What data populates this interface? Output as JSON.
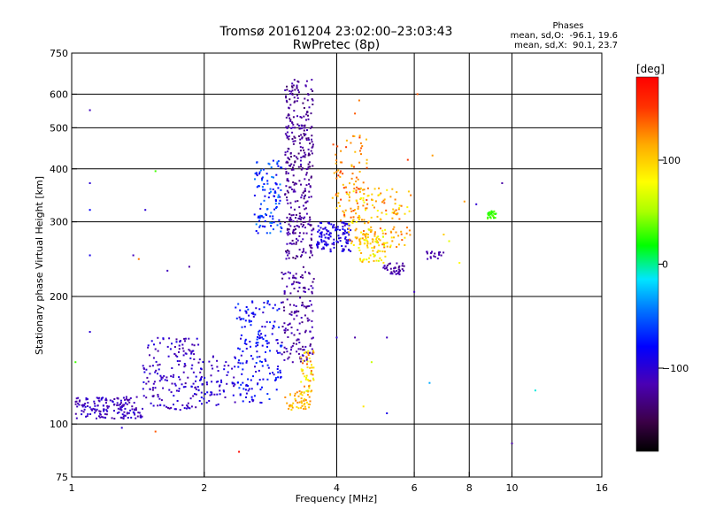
{
  "chart_data": {
    "type": "scatter",
    "title": "Tromsø 20161204 23:02:00–23:03:43",
    "subtitle": "RwPretec (8p)",
    "xlabel": "Frequency [MHz]",
    "ylabel": "Stationary phase Virtual Height [km]",
    "x_scale": "log",
    "y_scale": "log",
    "xlim": [
      1,
      16
    ],
    "ylim": [
      75,
      750
    ],
    "x_ticks": [
      1,
      2,
      4,
      6,
      8,
      10,
      16
    ],
    "x_tick_labels": [
      "1",
      "2",
      "4",
      "6",
      "8",
      "10",
      "16"
    ],
    "y_ticks": [
      75,
      100,
      200,
      300,
      400,
      500,
      600,
      750
    ],
    "y_tick_labels": [
      "75",
      "100",
      "200",
      "300",
      "400",
      "500",
      "600",
      "750"
    ],
    "grid": true,
    "phases_box": {
      "title": "Phases",
      "line_o": "mean, sd,O:  -96.1, 19.6",
      "line_x": "mean, sd,X:  90.1, 23.7"
    },
    "colorbar": {
      "label": "[deg]",
      "range": [
        -180,
        180
      ],
      "tick_values": [
        100,
        0,
        -100
      ],
      "tick_labels": [
        "100",
        "0",
        "−100"
      ]
    },
    "clusters": [
      {
        "x": [
          1.02,
          1.45
        ],
        "y": [
          103,
          116
        ],
        "phase": [
          -125,
          -95
        ],
        "n": 160
      },
      {
        "x": [
          1.45,
          1.95
        ],
        "y": [
          108,
          160
        ],
        "phase": [
          -125,
          -90
        ],
        "n": 170
      },
      {
        "x": [
          1.95,
          2.35
        ],
        "y": [
          110,
          145
        ],
        "phase": [
          -115,
          -85
        ],
        "n": 70
      },
      {
        "x": [
          2.35,
          3.0
        ],
        "y": [
          112,
          195
        ],
        "phase": [
          -105,
          -60
        ],
        "n": 180
      },
      {
        "x": [
          2.6,
          3.0
        ],
        "y": [
          280,
          420
        ],
        "phase": [
          -95,
          -35
        ],
        "n": 110
      },
      {
        "x": [
          3.0,
          3.55
        ],
        "y": [
          140,
          235
        ],
        "phase": [
          -135,
          -105
        ],
        "n": 150
      },
      {
        "x": [
          3.05,
          3.55
        ],
        "y": [
          245,
          650
        ],
        "phase": [
          -140,
          -110
        ],
        "n": 360
      },
      {
        "x": [
          3.05,
          3.5
        ],
        "y": [
          108,
          120
        ],
        "phase": [
          90,
          130
        ],
        "n": 50
      },
      {
        "x": [
          3.3,
          3.55
        ],
        "y": [
          118,
          150
        ],
        "phase": [
          60,
          140
        ],
        "n": 50
      },
      {
        "x": [
          3.6,
          4.3
        ],
        "y": [
          255,
          300
        ],
        "phase": [
          -110,
          -80
        ],
        "n": 130
      },
      {
        "x": [
          3.9,
          4.7
        ],
        "y": [
          300,
          480
        ],
        "phase": [
          100,
          150
        ],
        "n": 90
      },
      {
        "x": [
          4.2,
          5.9
        ],
        "y": [
          260,
          360
        ],
        "phase": [
          75,
          140
        ],
        "n": 150
      },
      {
        "x": [
          4.5,
          5.2
        ],
        "y": [
          240,
          290
        ],
        "phase": [
          60,
          120
        ],
        "n": 70
      },
      {
        "x": [
          5.1,
          5.7
        ],
        "y": [
          225,
          240
        ],
        "phase": [
          -135,
          -110
        ],
        "n": 40
      },
      {
        "x": [
          6.4,
          7.0
        ],
        "y": [
          245,
          255
        ],
        "phase": [
          -125,
          -110
        ],
        "n": 20
      },
      {
        "x": [
          8.8,
          9.2
        ],
        "y": [
          305,
          318
        ],
        "phase": [
          20,
          40
        ],
        "n": 25
      }
    ],
    "isolated_points": [
      {
        "x": 1.1,
        "y": 550,
        "phase": -110
      },
      {
        "x": 1.1,
        "y": 370,
        "phase": -100
      },
      {
        "x": 1.1,
        "y": 320,
        "phase": -80
      },
      {
        "x": 1.1,
        "y": 250,
        "phase": -90
      },
      {
        "x": 1.1,
        "y": 165,
        "phase": -100
      },
      {
        "x": 1.55,
        "y": 395,
        "phase": 30
      },
      {
        "x": 1.47,
        "y": 320,
        "phase": -100
      },
      {
        "x": 1.38,
        "y": 250,
        "phase": -110
      },
      {
        "x": 1.42,
        "y": 245,
        "phase": 130
      },
      {
        "x": 1.65,
        "y": 230,
        "phase": -110
      },
      {
        "x": 1.85,
        "y": 235,
        "phase": -120
      },
      {
        "x": 1.3,
        "y": 98,
        "phase": -100
      },
      {
        "x": 1.55,
        "y": 96,
        "phase": 140
      },
      {
        "x": 1.02,
        "y": 140,
        "phase": 30
      },
      {
        "x": 2.4,
        "y": 86,
        "phase": 175
      },
      {
        "x": 4.5,
        "y": 580,
        "phase": 130
      },
      {
        "x": 4.4,
        "y": 540,
        "phase": 140
      },
      {
        "x": 4.0,
        "y": 160,
        "phase": -100
      },
      {
        "x": 4.4,
        "y": 160,
        "phase": -120
      },
      {
        "x": 5.2,
        "y": 160,
        "phase": -110
      },
      {
        "x": 4.8,
        "y": 140,
        "phase": 60
      },
      {
        "x": 4.6,
        "y": 110,
        "phase": 90
      },
      {
        "x": 5.2,
        "y": 106,
        "phase": -90
      },
      {
        "x": 6.0,
        "y": 205,
        "phase": -110
      },
      {
        "x": 6.5,
        "y": 125,
        "phase": -30
      },
      {
        "x": 6.6,
        "y": 430,
        "phase": 120
      },
      {
        "x": 7.0,
        "y": 280,
        "phase": 100
      },
      {
        "x": 7.2,
        "y": 270,
        "phase": 70
      },
      {
        "x": 7.6,
        "y": 240,
        "phase": 80
      },
      {
        "x": 7.8,
        "y": 335,
        "phase": 120
      },
      {
        "x": 8.3,
        "y": 330,
        "phase": -100
      },
      {
        "x": 9.5,
        "y": 370,
        "phase": -120
      },
      {
        "x": 10.0,
        "y": 90,
        "phase": -120
      },
      {
        "x": 11.3,
        "y": 120,
        "phase": -10
      },
      {
        "x": 6.1,
        "y": 600,
        "phase": 140
      },
      {
        "x": 5.8,
        "y": 420,
        "phase": 150
      }
    ]
  }
}
